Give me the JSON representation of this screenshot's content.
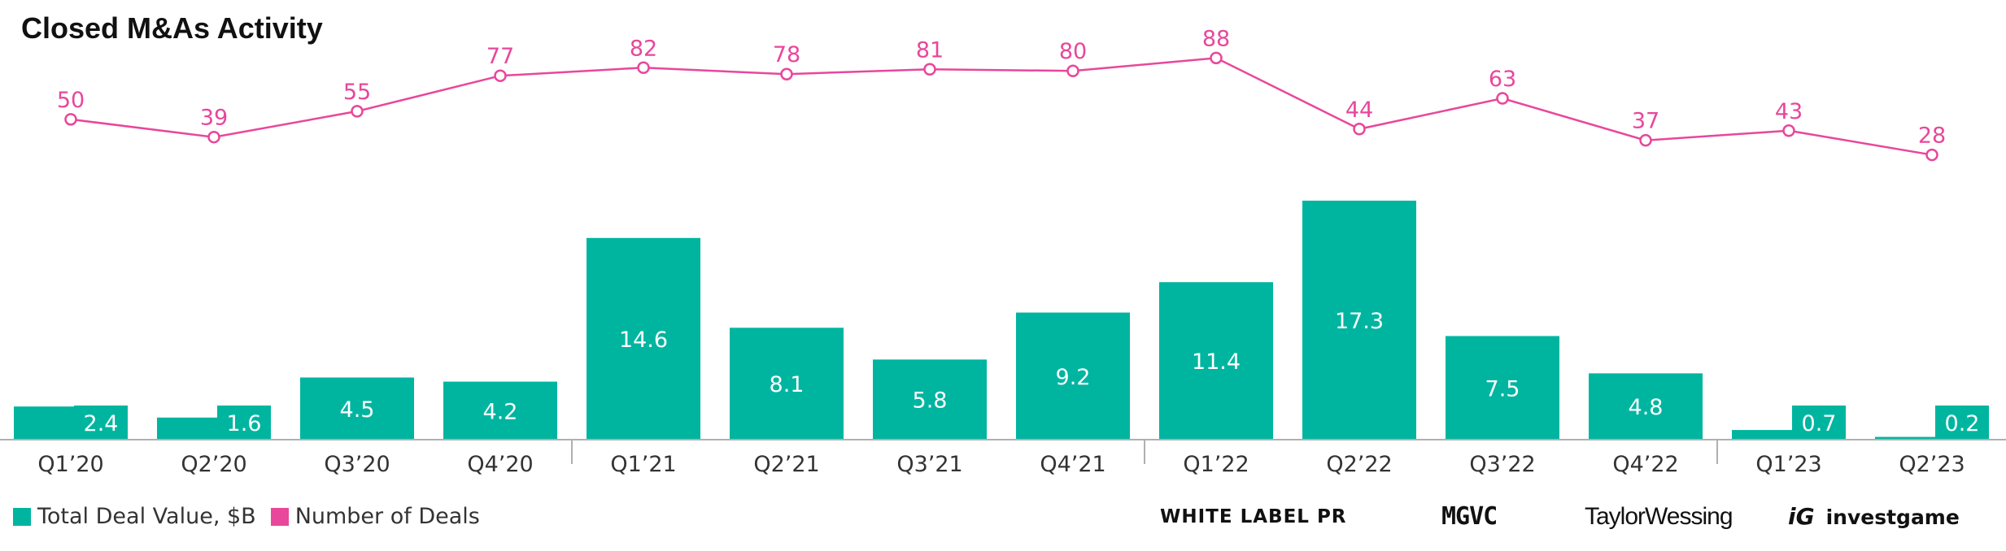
{
  "title": "Closed M&As Activity",
  "legend": [
    {
      "label": "Total Deal Value, $B",
      "color": "#00b5a0"
    },
    {
      "label": "Number of Deals",
      "color": "#e8479b"
    }
  ],
  "brands": {
    "white_label_pr": "WHITE LABEL PR",
    "mgvc": "MGVC",
    "taylor_wessing": "TaylorWessing",
    "investgame_mark": "iG",
    "investgame": "investgame"
  },
  "chart_data": {
    "type": "bar",
    "title": "Closed M&As Activity",
    "categories": [
      "Q1’20",
      "Q2’20",
      "Q3’20",
      "Q4’20",
      "Q1’21",
      "Q2’21",
      "Q3’21",
      "Q4’21",
      "Q1’22",
      "Q2’22",
      "Q3’22",
      "Q4’22",
      "Q1’23",
      "Q2’23"
    ],
    "series": [
      {
        "name": "Total Deal Value, $B",
        "type": "bar",
        "color": "#00b5a0",
        "values": [
          2.4,
          1.6,
          4.5,
          4.2,
          14.6,
          8.1,
          5.8,
          9.2,
          11.4,
          17.3,
          7.5,
          4.8,
          0.7,
          0.2
        ]
      },
      {
        "name": "Number of Deals",
        "type": "line",
        "color": "#e8479b",
        "values": [
          50,
          39,
          55,
          77,
          82,
          78,
          81,
          80,
          88,
          44,
          63,
          37,
          43,
          28
        ]
      }
    ],
    "year_separators_after": [
      "Q4’20",
      "Q4’21",
      "Q4’22"
    ]
  }
}
